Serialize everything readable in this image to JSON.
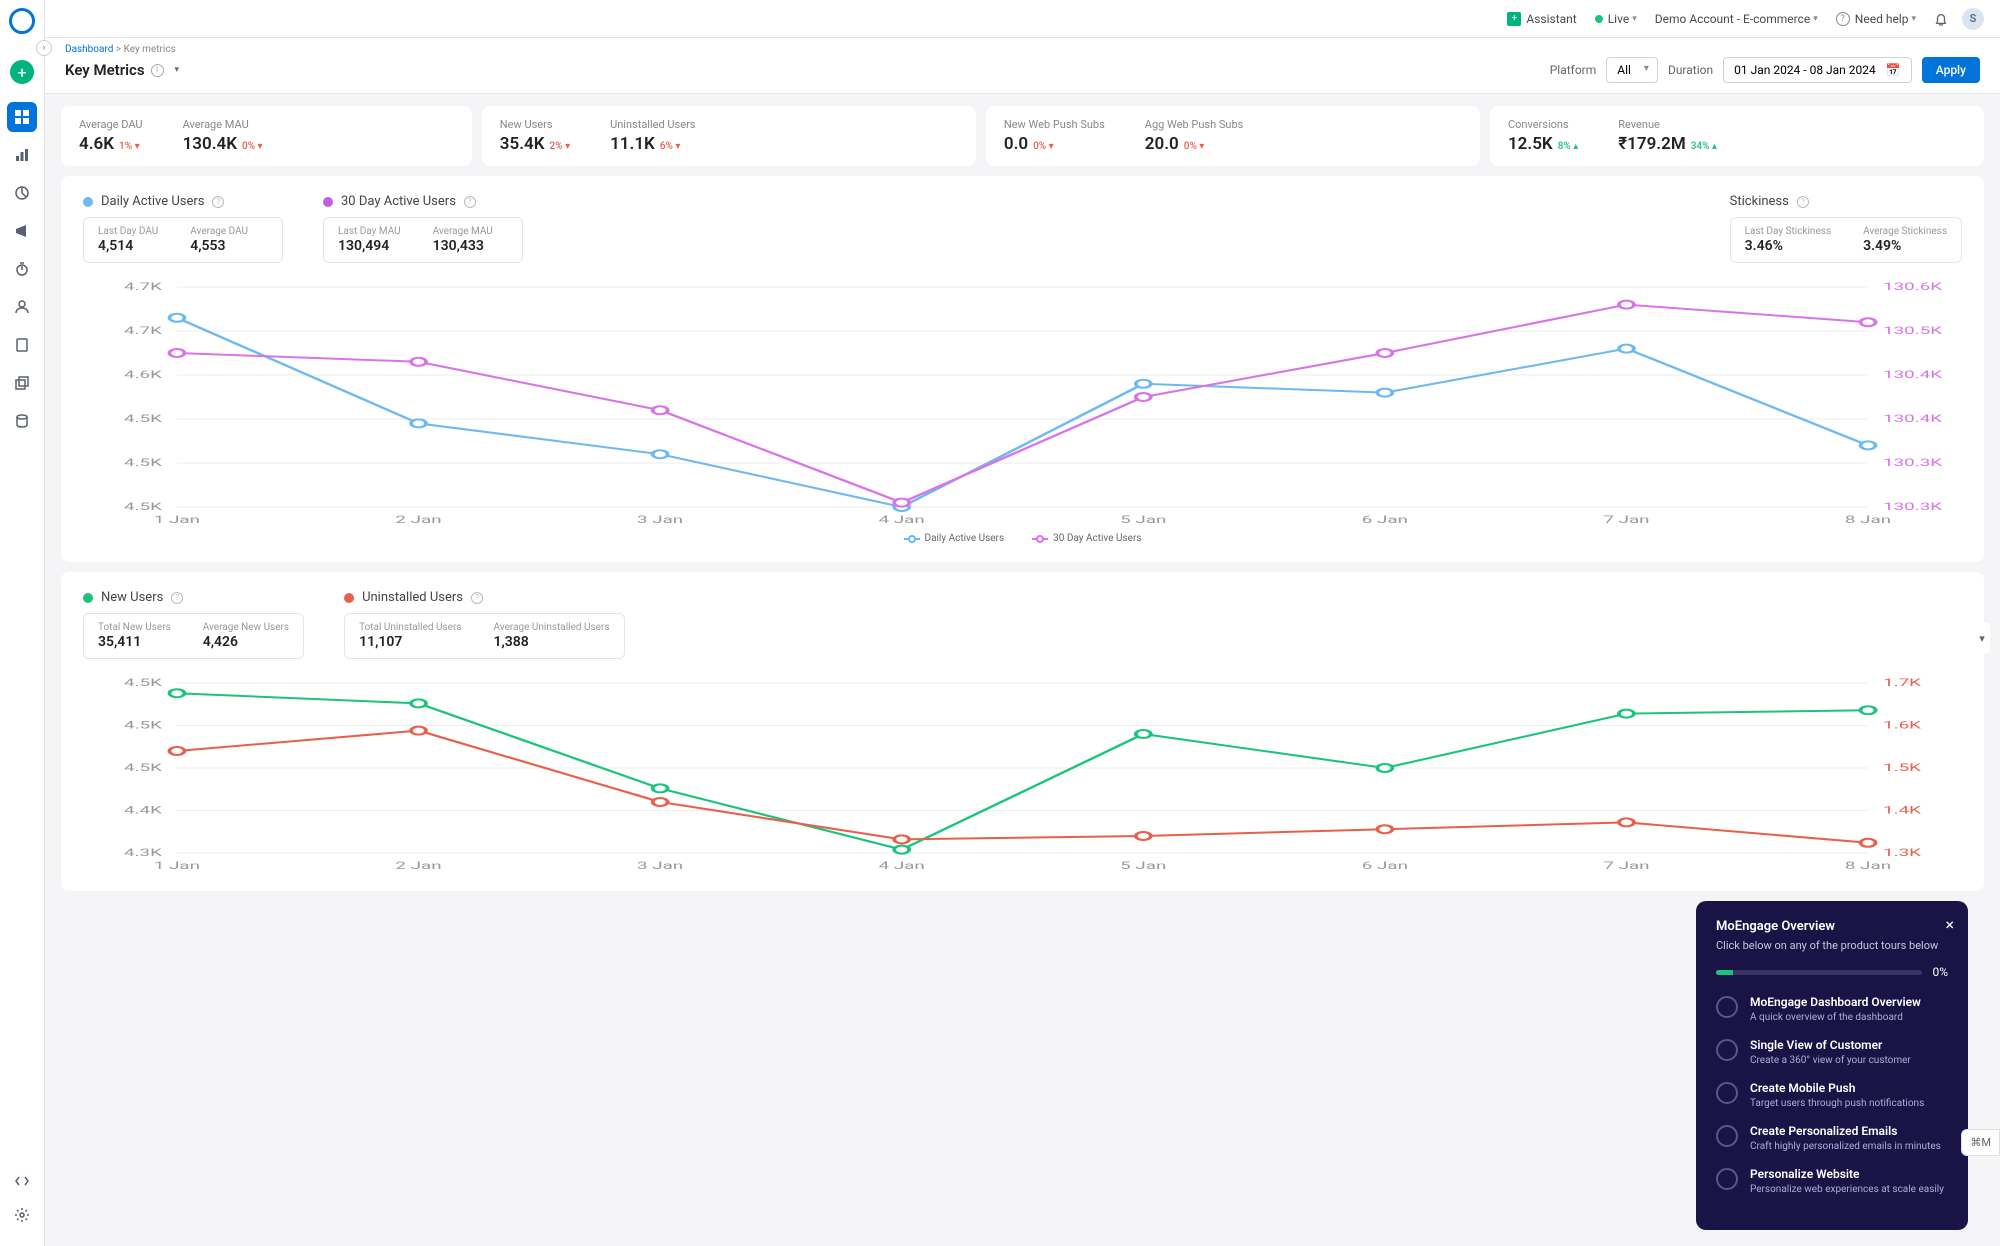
{
  "topbar": {
    "assistant": "Assistant",
    "live": "Live",
    "account": "Demo Account - E-commerce",
    "help": "Need help",
    "avatar": "S"
  },
  "breadcrumb": {
    "root": "Dashboard",
    "current": "Key metrics"
  },
  "page_title": "Key Metrics",
  "filters": {
    "platform_label": "Platform",
    "platform_value": "All",
    "duration_label": "Duration",
    "daterange": "01 Jan 2024 - 08 Jan 2024",
    "apply": "Apply"
  },
  "metrics": [
    {
      "label": "Average DAU",
      "value": "4.6K",
      "change": "1%",
      "dir": "down"
    },
    {
      "label": "Average MAU",
      "value": "130.4K",
      "change": "0%",
      "dir": "down"
    },
    {
      "label": "New Users",
      "value": "35.4K",
      "change": "2%",
      "dir": "down"
    },
    {
      "label": "Uninstalled Users",
      "value": "11.1K",
      "change": "6%",
      "dir": "down"
    },
    {
      "label": "New Web Push Subs",
      "value": "0.0",
      "change": "0%",
      "dir": "down"
    },
    {
      "label": "Agg Web Push Subs",
      "value": "20.0",
      "change": "0%",
      "dir": "down"
    },
    {
      "label": "Conversions",
      "value": "12.5K",
      "change": "8%",
      "dir": "up"
    },
    {
      "label": "Revenue",
      "value": "₹179.2M",
      "change": "34%",
      "dir": "up"
    }
  ],
  "chart1": {
    "groups": [
      {
        "dot": "#6db9f0",
        "title": "Daily Active Users",
        "stats": [
          {
            "label": "Last Day DAU",
            "value": "4,514"
          },
          {
            "label": "Average DAU",
            "value": "4,553"
          }
        ]
      },
      {
        "dot": "#c25fe0",
        "title": "30 Day Active Users",
        "stats": [
          {
            "label": "Last Day MAU",
            "value": "130,494"
          },
          {
            "label": "Average MAU",
            "value": "130,433"
          }
        ]
      },
      {
        "dot": null,
        "title": "Stickiness",
        "right": true,
        "stats": [
          {
            "label": "Last Day Stickiness",
            "value": "3.46%"
          },
          {
            "label": "Average Stickiness",
            "value": "3.49%"
          }
        ]
      }
    ],
    "y_left": [
      "4.7K",
      "4.7K",
      "4.6K",
      "4.5K",
      "4.5K",
      "4.5K"
    ],
    "y_right": [
      "130.6K",
      "130.5K",
      "130.4K",
      "130.4K",
      "130.3K",
      "130.3K"
    ],
    "x": [
      "1 Jan",
      "2 Jan",
      "3 Jan",
      "4 Jan",
      "5 Jan",
      "6 Jan",
      "7 Jan",
      "8 Jan"
    ],
    "legend": [
      "Daily Active Users",
      "30 Day Active Users"
    ],
    "series_dau": [
      0.14,
      0.62,
      0.76,
      1.0,
      0.44,
      0.48,
      0.28,
      0.72
    ],
    "series_mau": [
      0.3,
      0.34,
      0.56,
      0.98,
      0.5,
      0.3,
      0.08,
      0.16
    ],
    "colors": {
      "dau": "#6db9f0",
      "mau": "#d974e8"
    }
  },
  "chart2": {
    "groups": [
      {
        "dot": "#1bc47d",
        "title": "New Users",
        "stats": [
          {
            "label": "Total New Users",
            "value": "35,411"
          },
          {
            "label": "Average New Users",
            "value": "4,426"
          }
        ]
      },
      {
        "dot": "#e8604c",
        "title": "Uninstalled Users",
        "stats": [
          {
            "label": "Total Uninstalled Users",
            "value": "11,107"
          },
          {
            "label": "Average Uninstalled Users",
            "value": "1,388"
          }
        ]
      }
    ],
    "y_left": [
      "4.5K",
      "4.5K",
      "4.5K",
      "4.4K",
      "4.3K"
    ],
    "y_right": [
      "1.7K",
      "1.6K",
      "1.5K",
      "1.4K",
      "1.3K"
    ],
    "series_new": [
      0.06,
      0.12,
      0.62,
      0.98,
      0.3,
      0.5,
      0.18,
      0.16
    ],
    "series_uninst": [
      0.4,
      0.28,
      0.7,
      0.92,
      0.9,
      0.86,
      0.82,
      0.94
    ],
    "colors": {
      "new": "#1bc47d",
      "uninst": "#e8604c"
    }
  },
  "tour": {
    "title": "MoEngage Overview",
    "sub": "Click below on any of the product tours below",
    "progress": "0%",
    "items": [
      {
        "title": "MoEngage Dashboard Overview",
        "sub": "A quick overview of the dashboard"
      },
      {
        "title": "Single View of Customer",
        "sub": "Create a 360° view of your customer"
      },
      {
        "title": "Create Mobile Push",
        "sub": "Target users through push notifications"
      },
      {
        "title": "Create Personalized Emails",
        "sub": "Craft highly personalized emails in minutes"
      },
      {
        "title": "Personalize Website",
        "sub": "Personalize web experiences at scale easily"
      }
    ]
  },
  "cmd": "⌘M"
}
